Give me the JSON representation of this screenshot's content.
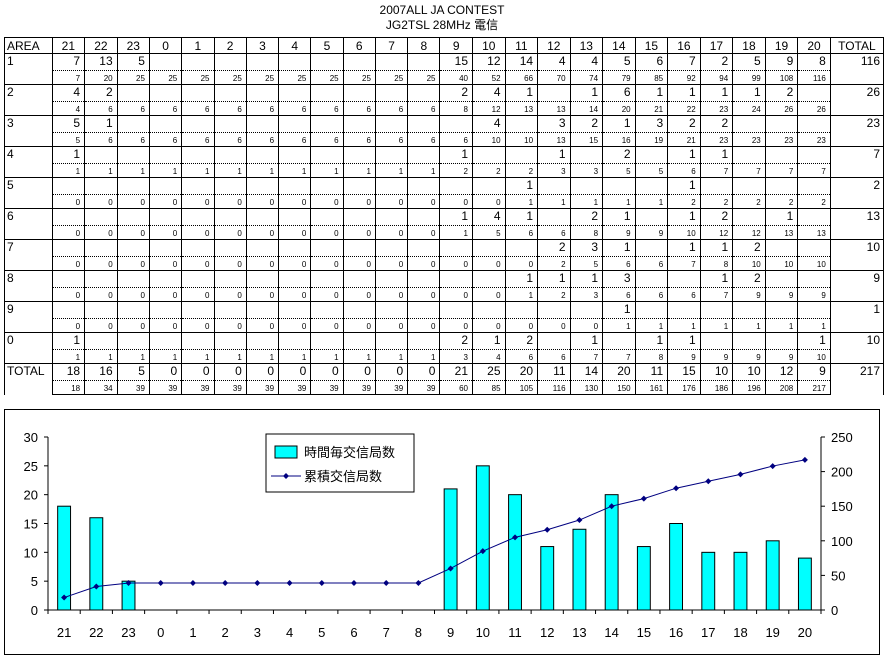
{
  "header": {
    "title": "2007ALL  JA CONTEST",
    "subtitle": "JG2TSL  28MHz  電信"
  },
  "table": {
    "area_label": "AREA",
    "total_label": "TOTAL",
    "hours": [
      "21",
      "22",
      "23",
      "0",
      "1",
      "2",
      "3",
      "4",
      "5",
      "6",
      "7",
      "8",
      "9",
      "10",
      "11",
      "12",
      "13",
      "14",
      "15",
      "16",
      "17",
      "18",
      "19",
      "20"
    ],
    "rows": [
      {
        "area": "1",
        "counts": [
          "7",
          "13",
          "5",
          "",
          "",
          "",
          "",
          "",
          "",
          "",
          "",
          "",
          "15",
          "12",
          "14",
          "4",
          "4",
          "5",
          "6",
          "7",
          "2",
          "5",
          "9",
          "8"
        ],
        "cum": [
          "7",
          "20",
          "25",
          "25",
          "25",
          "25",
          "25",
          "25",
          "25",
          "25",
          "25",
          "25",
          "40",
          "52",
          "66",
          "70",
          "74",
          "79",
          "85",
          "92",
          "94",
          "99",
          "108",
          "116"
        ],
        "total": "116"
      },
      {
        "area": "2",
        "counts": [
          "4",
          "2",
          "",
          "",
          "",
          "",
          "",
          "",
          "",
          "",
          "",
          "",
          "2",
          "4",
          "1",
          "",
          "1",
          "6",
          "1",
          "1",
          "1",
          "1",
          "2",
          ""
        ],
        "cum": [
          "4",
          "6",
          "6",
          "6",
          "6",
          "6",
          "6",
          "6",
          "6",
          "6",
          "6",
          "6",
          "8",
          "12",
          "13",
          "13",
          "14",
          "20",
          "21",
          "22",
          "23",
          "24",
          "26",
          "26"
        ],
        "total": "26"
      },
      {
        "area": "3",
        "counts": [
          "5",
          "1",
          "",
          "",
          "",
          "",
          "",
          "",
          "",
          "",
          "",
          "",
          "",
          "4",
          "",
          "3",
          "2",
          "1",
          "3",
          "2",
          "2",
          "",
          "",
          ""
        ],
        "cum": [
          "5",
          "6",
          "6",
          "6",
          "6",
          "6",
          "6",
          "6",
          "6",
          "6",
          "6",
          "6",
          "6",
          "10",
          "10",
          "13",
          "15",
          "16",
          "19",
          "21",
          "23",
          "23",
          "23",
          "23"
        ],
        "total": "23"
      },
      {
        "area": "4",
        "counts": [
          "1",
          "",
          "",
          "",
          "",
          "",
          "",
          "",
          "",
          "",
          "",
          "",
          "1",
          "",
          "",
          "1",
          "",
          "2",
          "",
          "1",
          "1",
          "",
          "",
          ""
        ],
        "cum": [
          "1",
          "1",
          "1",
          "1",
          "1",
          "1",
          "1",
          "1",
          "1",
          "1",
          "1",
          "1",
          "2",
          "2",
          "2",
          "3",
          "3",
          "5",
          "5",
          "6",
          "7",
          "7",
          "7",
          "7"
        ],
        "total": "7"
      },
      {
        "area": "5",
        "counts": [
          "",
          "",
          "",
          "",
          "",
          "",
          "",
          "",
          "",
          "",
          "",
          "",
          "",
          "",
          "1",
          "",
          "",
          "",
          "",
          "1",
          "",
          "",
          "",
          ""
        ],
        "cum": [
          "0",
          "0",
          "0",
          "0",
          "0",
          "0",
          "0",
          "0",
          "0",
          "0",
          "0",
          "0",
          "0",
          "0",
          "1",
          "1",
          "1",
          "1",
          "1",
          "2",
          "2",
          "2",
          "2",
          "2"
        ],
        "total": "2"
      },
      {
        "area": "6",
        "counts": [
          "",
          "",
          "",
          "",
          "",
          "",
          "",
          "",
          "",
          "",
          "",
          "",
          "1",
          "4",
          "1",
          "",
          "2",
          "1",
          "",
          "1",
          "2",
          "",
          "1",
          ""
        ],
        "cum": [
          "0",
          "0",
          "0",
          "0",
          "0",
          "0",
          "0",
          "0",
          "0",
          "0",
          "0",
          "0",
          "1",
          "5",
          "6",
          "6",
          "8",
          "9",
          "9",
          "10",
          "12",
          "12",
          "13",
          "13"
        ],
        "total": "13"
      },
      {
        "area": "7",
        "counts": [
          "",
          "",
          "",
          "",
          "",
          "",
          "",
          "",
          "",
          "",
          "",
          "",
          "",
          "",
          "",
          "2",
          "3",
          "1",
          "",
          "1",
          "1",
          "2",
          "",
          ""
        ],
        "cum": [
          "0",
          "0",
          "0",
          "0",
          "0",
          "0",
          "0",
          "0",
          "0",
          "0",
          "0",
          "0",
          "0",
          "0",
          "0",
          "2",
          "5",
          "6",
          "6",
          "7",
          "8",
          "10",
          "10",
          "10"
        ],
        "total": "10"
      },
      {
        "area": "8",
        "counts": [
          "",
          "",
          "",
          "",
          "",
          "",
          "",
          "",
          "",
          "",
          "",
          "",
          "",
          "",
          "1",
          "1",
          "1",
          "3",
          "",
          "",
          "1",
          "2",
          "",
          ""
        ],
        "cum": [
          "0",
          "0",
          "0",
          "0",
          "0",
          "0",
          "0",
          "0",
          "0",
          "0",
          "0",
          "0",
          "0",
          "0",
          "1",
          "2",
          "3",
          "6",
          "6",
          "6",
          "7",
          "9",
          "9",
          "9"
        ],
        "total": "9"
      },
      {
        "area": "9",
        "counts": [
          "",
          "",
          "",
          "",
          "",
          "",
          "",
          "",
          "",
          "",
          "",
          "",
          "",
          "",
          "",
          "",
          "",
          "1",
          "",
          "",
          "",
          "",
          "",
          ""
        ],
        "cum": [
          "0",
          "0",
          "0",
          "0",
          "0",
          "0",
          "0",
          "0",
          "0",
          "0",
          "0",
          "0",
          "0",
          "0",
          "0",
          "0",
          "0",
          "1",
          "1",
          "1",
          "1",
          "1",
          "1",
          "1"
        ],
        "total": "1"
      },
      {
        "area": "0",
        "counts": [
          "1",
          "",
          "",
          "",
          "",
          "",
          "",
          "",
          "",
          "",
          "",
          "",
          "2",
          "1",
          "2",
          "",
          "1",
          "",
          "1",
          "1",
          "",
          "",
          "",
          "1"
        ],
        "cum": [
          "1",
          "1",
          "1",
          "1",
          "1",
          "1",
          "1",
          "1",
          "1",
          "1",
          "1",
          "1",
          "3",
          "4",
          "6",
          "6",
          "7",
          "7",
          "8",
          "9",
          "9",
          "9",
          "9",
          "10"
        ],
        "total": "10"
      }
    ],
    "total_row": {
      "label": "TOTAL",
      "counts": [
        "18",
        "16",
        "5",
        "0",
        "0",
        "0",
        "0",
        "0",
        "0",
        "0",
        "0",
        "0",
        "21",
        "25",
        "20",
        "11",
        "14",
        "20",
        "11",
        "15",
        "10",
        "10",
        "12",
        "9"
      ],
      "cum": [
        "18",
        "34",
        "39",
        "39",
        "39",
        "39",
        "39",
        "39",
        "39",
        "39",
        "39",
        "39",
        "60",
        "85",
        "105",
        "116",
        "130",
        "150",
        "161",
        "176",
        "186",
        "196",
        "208",
        "217"
      ],
      "total": "217"
    }
  },
  "chart_data": {
    "type": "bar",
    "categories": [
      "21",
      "22",
      "23",
      "0",
      "1",
      "2",
      "3",
      "4",
      "5",
      "6",
      "7",
      "8",
      "9",
      "10",
      "11",
      "12",
      "13",
      "14",
      "15",
      "16",
      "17",
      "18",
      "19",
      "20"
    ],
    "series": [
      {
        "name": "時間毎交信局数",
        "type": "bar",
        "axis": "left",
        "color": "#00ffff",
        "values": [
          18,
          16,
          5,
          0,
          0,
          0,
          0,
          0,
          0,
          0,
          0,
          0,
          21,
          25,
          20,
          11,
          14,
          20,
          11,
          15,
          10,
          10,
          12,
          9
        ]
      },
      {
        "name": "累積交信局数",
        "type": "line",
        "axis": "right",
        "color": "#000080",
        "values": [
          18,
          34,
          39,
          39,
          39,
          39,
          39,
          39,
          39,
          39,
          39,
          39,
          60,
          85,
          105,
          116,
          130,
          150,
          161,
          176,
          186,
          196,
          208,
          217
        ]
      }
    ],
    "ylim_left": [
      0,
      30
    ],
    "yticks_left": [
      "0",
      "5",
      "10",
      "15",
      "20",
      "25",
      "30"
    ],
    "ylim_right": [
      0,
      250
    ],
    "yticks_right": [
      "0",
      "50",
      "100",
      "150",
      "200",
      "250"
    ],
    "grid": false,
    "legend_position": "top-center"
  }
}
